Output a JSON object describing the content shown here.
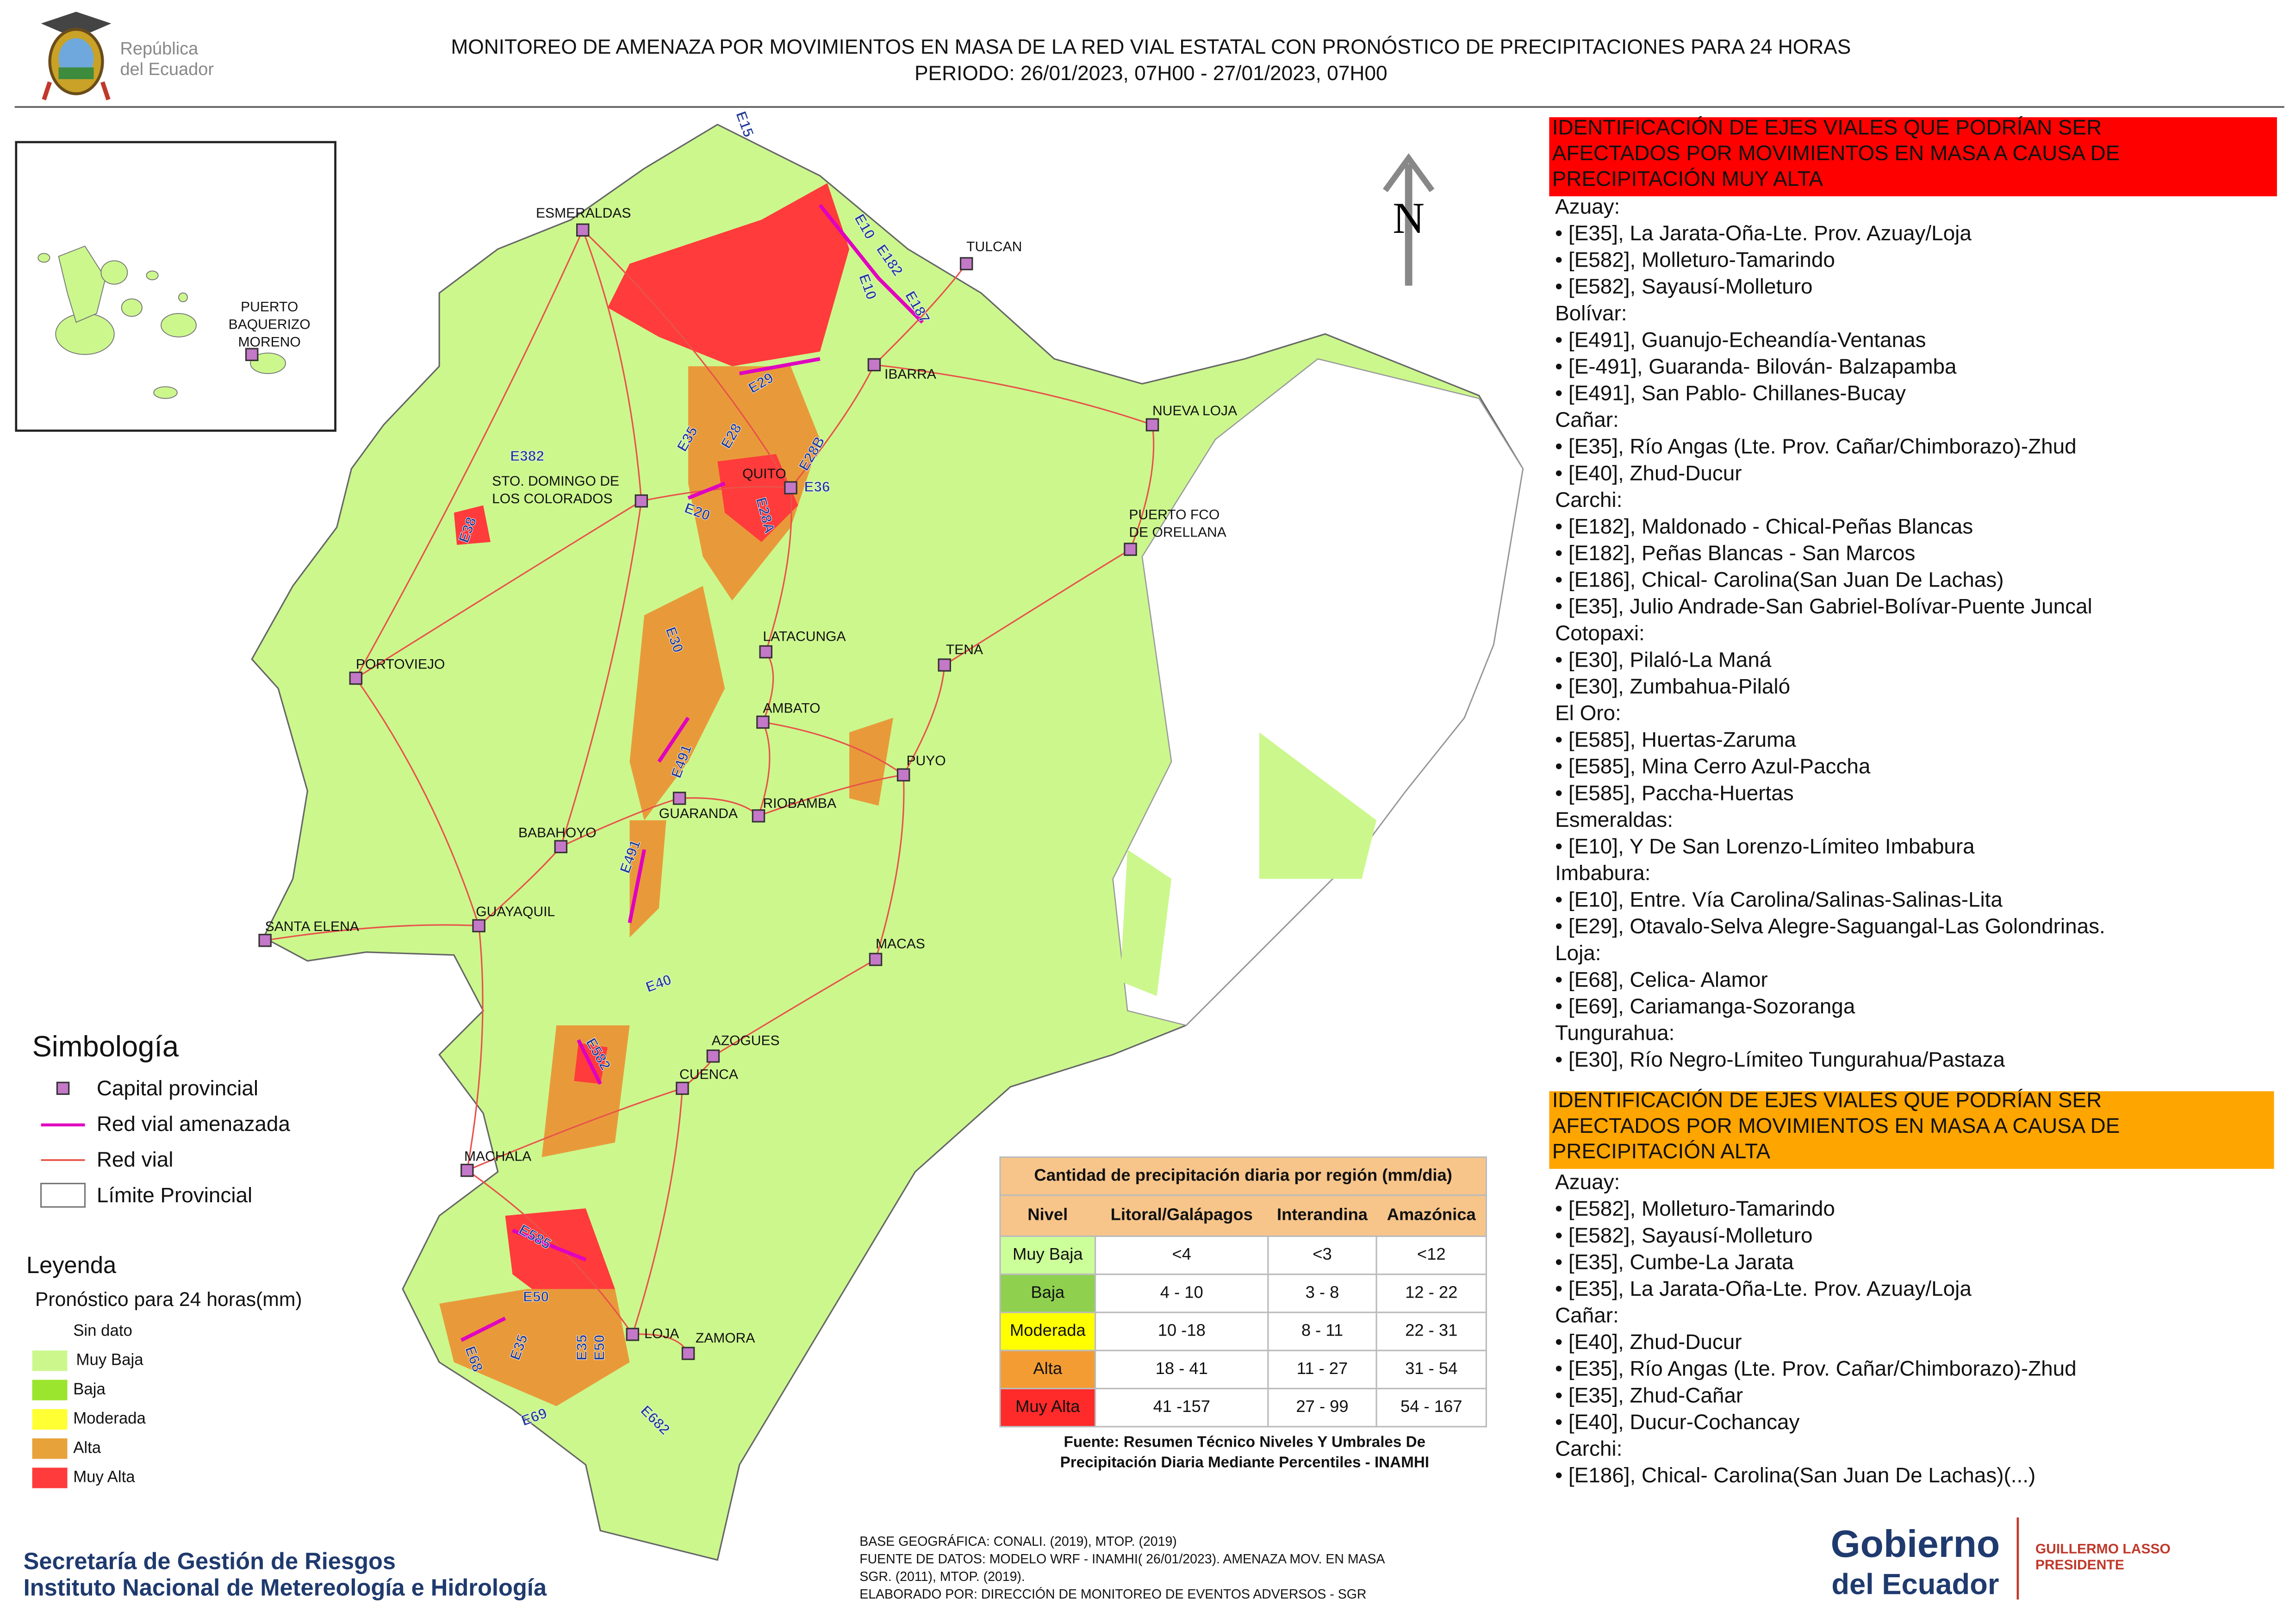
{
  "header": {
    "logo_lines": [
      "República",
      "del Ecuador"
    ],
    "title_lines": [
      "MONITOREO DE AMENAZA POR MOVIMIENTOS EN MASA DE LA RED VIAL  ESTATAL  CON PRONÓSTICO  DE  PRECIPITACIONES PARA 24 HORAS",
      "PERIODO: 26/01/2023, 07H00 - 27/01/2023, 07H00"
    ]
  },
  "map": {
    "north": "N",
    "inset_city": [
      "PUERTO",
      "BAQUERIZO",
      "MORENO"
    ],
    "cities": [
      [
        "ESMERALDAS"
      ],
      [
        "TULCAN"
      ],
      [
        "IBARRA"
      ],
      [
        "NUEVA LOJA"
      ],
      [
        "QUITO"
      ],
      [
        "STO. DOMINGO DE",
        "LOS COLORADOS"
      ],
      [
        "PUERTO FCO",
        "DE ORELLANA"
      ],
      [
        "PORTOVIEJO"
      ],
      [
        "LATACUNGA"
      ],
      [
        "TENA"
      ],
      [
        "AMBATO"
      ],
      [
        "PUYO"
      ],
      [
        "GUARANDA"
      ],
      [
        "RIOBAMBA"
      ],
      [
        "BABAHOYO"
      ],
      [
        "SANTA ELENA"
      ],
      [
        "GUAYAQUIL"
      ],
      [
        "MACAS"
      ],
      [
        "AZOGUES"
      ],
      [
        "CUENCA"
      ],
      [
        "MACHALA"
      ],
      [
        "LOJA"
      ],
      [
        "ZAMORA"
      ]
    ],
    "roads": [
      "E15",
      "E10",
      "E182",
      "E10",
      "E187",
      "E29",
      "E35",
      "E28",
      "E28B",
      "E36",
      "E28A",
      "E20",
      "E382",
      "E38",
      "E30",
      "E491",
      "E491",
      "E40",
      "E582",
      "E585",
      "E50",
      "E35",
      "E35",
      "E50",
      "E68",
      "E69",
      "E682"
    ]
  },
  "simbologia": {
    "title": "Simbología",
    "items": [
      "Capital provincial",
      "Red vial amenazada",
      "Red vial",
      "Límite Provincial"
    ]
  },
  "leyenda": {
    "title": "Leyenda",
    "subtitle": "Pronóstico para 24 horas(mm)",
    "items": [
      "Sin dato",
      "Muy Baja",
      "Baja",
      "Moderada",
      "Alta",
      "Muy Alta"
    ]
  },
  "table": {
    "title": "Cantidad de precipitación diaria por región (mm/dia)",
    "header": [
      "Nivel",
      "Litoral/Galápagos",
      "Interandina",
      "Amazónica"
    ],
    "rows": [
      [
        "Muy Baja",
        "<4",
        "<3",
        "<12"
      ],
      [
        "Baja",
        "4 - 10",
        "3 - 8",
        "12 - 22"
      ],
      [
        "Moderada",
        "10 -18",
        "8 - 11",
        "22 - 31"
      ],
      [
        "Alta",
        "18 - 41",
        "11 - 27",
        "31 - 54"
      ],
      [
        "Muy Alta",
        "41 -157",
        "27 - 99",
        "54 - 167"
      ]
    ],
    "source": [
      "Fuente: Resumen Técnico Niveles Y Umbrales De",
      "Precipitación Diaria Mediante Percentiles - INAMHI"
    ]
  },
  "panels": [
    {
      "heading": [
        "IDENTIFICACIÓN DE EJES VIALES QUE PODRÍAN SER",
        "AFECTADOS POR MOVIMIENTOS EN MASA A CAUSA DE",
        "PRECIPITACIÓN MUY ALTA"
      ],
      "lines": [
        "Azuay:",
        "• [E35], La Jarata-Oña-Lte. Prov. Azuay/Loja",
        "• [E582], Molleturo-Tamarindo",
        "• [E582], Sayausí-Molleturo",
        "Bolívar:",
        "• [E491], Guanujo-Echeandía-Ventanas",
        "• [E-491], Guaranda- Bilován- Balzapamba",
        "• [E491], San Pablo- Chillanes-Bucay",
        "Cañar:",
        "• [E35], Río Angas (Lte. Prov. Cañar/Chimborazo)-Zhud",
        "• [E40], Zhud-Ducur",
        "Carchi:",
        "• [E182], Maldonado - Chical-Peñas Blancas",
        "• [E182], Peñas Blancas - San Marcos",
        "• [E186], Chical- Carolina(San Juan De Lachas)",
        "• [E35], Julio Andrade-San Gabriel-Bolívar-Puente Juncal",
        "Cotopaxi:",
        "• [E30], Pilaló-La Maná",
        "• [E30], Zumbahua-Pilaló",
        "El Oro:",
        "• [E585], Huertas-Zaruma",
        "• [E585], Mina Cerro Azul-Paccha",
        "• [E585], Paccha-Huertas",
        "Esmeraldas:",
        "• [E10], Y De San Lorenzo-Límiteo Imbabura",
        "Imbabura:",
        "• [E10], Entre. Vía Carolina/Salinas-Salinas-Lita",
        "• [E29], Otavalo-Selva Alegre-Saguangal-Las Golondrinas.",
        "Loja:",
        "• [E68], Celica- Alamor",
        "• [E69], Cariamanga-Sozoranga",
        "Tungurahua:",
        "• [E30], Río Negro-Límiteo Tungurahua/Pastaza"
      ]
    },
    {
      "heading": [
        "IDENTIFICACIÓN DE EJES VIALES QUE PODRÍAN SER",
        "AFECTADOS POR MOVIMIENTOS EN MASA A CAUSA DE",
        "PRECIPITACIÓN  ALTA"
      ],
      "lines": [
        "Azuay:",
        "• [E582], Molleturo-Tamarindo",
        "• [E582], Sayausí-Molleturo",
        "• [E35], Cumbe-La Jarata",
        "• [E35], La Jarata-Oña-Lte. Prov. Azuay/Loja",
        "Cañar:",
        "• [E40], Zhud-Ducur",
        "• [E35], Río Angas (Lte. Prov. Cañar/Chimborazo)-Zhud",
        "• [E35], Zhud-Cañar",
        "• [E40], Ducur-Cochancay",
        "Carchi:",
        "• [E186], Chical- Carolina(San Juan De Lachas)(...)"
      ]
    }
  ],
  "footer": {
    "org_lines": [
      "Secretaría de Gestión de Riesgos",
      "Instituto Nacional de Metereología e Hidrología"
    ],
    "credits": [
      "BASE GEOGRÁFICA: CONALI. (2019), MTOP. (2019)",
      "FUENTE DE DATOS: MODELO WRF - INAMHI( 26/01/2023).  AMENAZA MOV. EN MASA",
      "SGR. (2011), MTOP. (2019).",
      "ELABORADO POR: DIRECCIÓN DE MONITOREO DE EVENTOS ADVERSOS - SGR"
    ],
    "gov_logo": [
      "Gobierno",
      "del Ecuador"
    ],
    "president": [
      "GUILLERMO LASSO",
      "PRESIDENTE"
    ]
  }
}
